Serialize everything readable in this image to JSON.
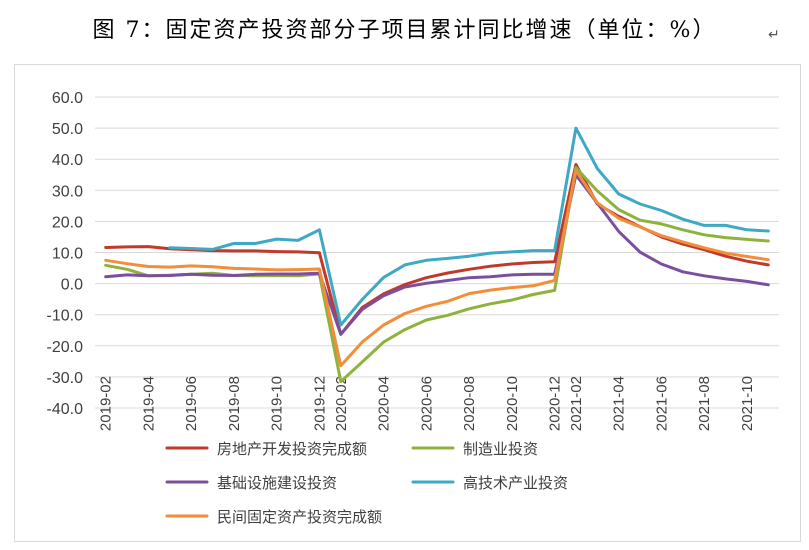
{
  "figure": {
    "title": "图 7：固定资产投资部分子项目累计同比增速（单位：%）",
    "return_mark": "↵"
  },
  "chart_data": {
    "type": "line",
    "title": "",
    "xlabel": "",
    "ylabel": "",
    "ylim": [
      -40,
      60
    ],
    "yticks": [
      "60.0",
      "50.0",
      "40.0",
      "30.0",
      "20.0",
      "10.0",
      "0.0",
      "-10.0",
      "-20.0",
      "-30.0",
      "-40.0"
    ],
    "ytick_values": [
      60,
      50,
      40,
      30,
      20,
      10,
      0,
      -10,
      -20,
      -30,
      -40
    ],
    "grid": "horizontal",
    "legend_position": "bottom",
    "x": [
      "2019-02",
      "2019-03",
      "2019-04",
      "2019-05",
      "2019-06",
      "2019-07",
      "2019-08",
      "2019-09",
      "2019-10",
      "2019-11",
      "2019-12",
      "2020-02",
      "2020-03",
      "2020-04",
      "2020-05",
      "2020-06",
      "2020-07",
      "2020-08",
      "2020-09",
      "2020-10",
      "2020-11",
      "2020-12",
      "2021-02",
      "2021-03",
      "2021-04",
      "2021-05",
      "2021-06",
      "2021-07",
      "2021-08",
      "2021-09",
      "2021-10",
      "2021-11"
    ],
    "xtick_labels": [
      "2019-02",
      "2019-04",
      "2019-06",
      "2019-08",
      "2019-10",
      "2019-12",
      "2020-02",
      "2020-04",
      "2020-06",
      "2020-08",
      "2020-10",
      "2020-12",
      "2021-02",
      "2021-04",
      "2021-06",
      "2021-08",
      "2021-10"
    ],
    "series": [
      {
        "name": "房地产开发投资完成额",
        "color": "#c0392b",
        "values": [
          11.6,
          11.8,
          11.9,
          11.2,
          10.9,
          10.6,
          10.5,
          10.5,
          10.3,
          10.2,
          9.9,
          -16.3,
          -7.7,
          -3.3,
          -0.3,
          1.9,
          3.4,
          4.6,
          5.6,
          6.3,
          6.8,
          7.0,
          38.3,
          25.6,
          21.6,
          18.3,
          15.0,
          12.7,
          10.9,
          8.8,
          7.2,
          6.0
        ]
      },
      {
        "name": "制造业投资",
        "color": "#8db33c",
        "values": [
          5.9,
          4.6,
          2.5,
          2.7,
          3.0,
          3.3,
          2.6,
          2.5,
          2.6,
          2.5,
          3.1,
          -31.5,
          -25.2,
          -18.8,
          -14.8,
          -11.7,
          -10.2,
          -8.1,
          -6.5,
          -5.3,
          -3.5,
          -2.2,
          37.3,
          29.8,
          23.8,
          20.4,
          19.2,
          17.3,
          15.7,
          14.8,
          14.2,
          13.7
        ]
      },
      {
        "name": "基础设施建设投资",
        "color": "#7b4f9e",
        "values": [
          2.2,
          2.8,
          2.5,
          2.6,
          3.0,
          2.7,
          2.6,
          3.0,
          3.1,
          3.1,
          3.3,
          -16.3,
          -8.3,
          -3.9,
          -1.1,
          0.1,
          1.0,
          1.9,
          2.2,
          2.8,
          3.0,
          3.0,
          35.0,
          25.9,
          16.8,
          10.1,
          6.3,
          3.8,
          2.5,
          1.5,
          0.7,
          -0.4
        ]
      },
      {
        "name": "高技术产业投资",
        "color": "#3fa9c4",
        "values": [
          null,
          null,
          null,
          11.5,
          11.3,
          11.0,
          12.9,
          12.9,
          14.3,
          13.9,
          17.3,
          -13.3,
          -5.1,
          2.0,
          6.0,
          7.5,
          8.1,
          8.8,
          9.8,
          10.2,
          10.6,
          10.6,
          50.0,
          37.0,
          28.8,
          25.6,
          23.5,
          20.7,
          18.7,
          18.7,
          17.3,
          16.9
        ]
      },
      {
        "name": "民间固定资产投资完成额",
        "color": "#f28e3a",
        "values": [
          7.5,
          6.4,
          5.5,
          5.3,
          5.7,
          5.4,
          4.9,
          4.7,
          4.4,
          4.5,
          4.7,
          -26.4,
          -18.8,
          -13.3,
          -9.6,
          -7.3,
          -5.7,
          -3.2,
          -2.1,
          -1.3,
          -0.7,
          1.0,
          36.4,
          26.0,
          21.0,
          18.2,
          15.4,
          13.4,
          11.5,
          9.8,
          8.7,
          7.7
        ]
      }
    ]
  }
}
